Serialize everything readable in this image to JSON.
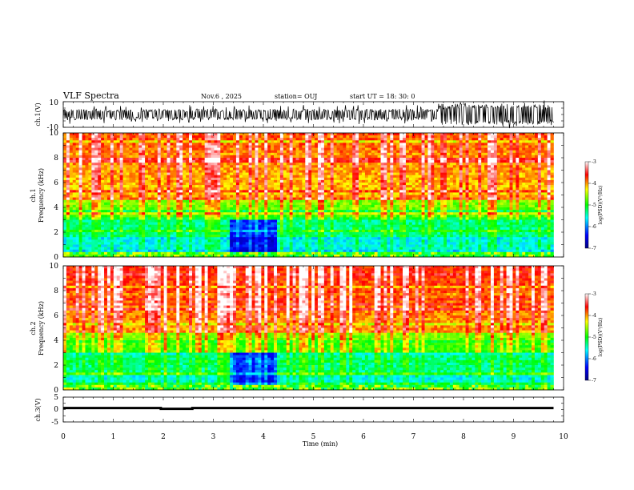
{
  "header": {
    "title": "VLF Spectra",
    "date": "Nov.6 , 2025",
    "station": "station= OUJ",
    "start": "start UT = 18: 30: 0"
  },
  "chart_data": [
    {
      "type": "line",
      "name": "ch1-waveform",
      "ylabel": "ch.1(V)",
      "ylim": [
        -10,
        10
      ],
      "yticks": [
        "10",
        "-10"
      ],
      "xlim": [
        0,
        10
      ]
    },
    {
      "type": "heatmap",
      "name": "ch1-spectrogram",
      "ylabel_line1": "ch.1",
      "ylabel_line2": "Frequency (kHz)",
      "ylim": [
        0,
        10
      ],
      "yticks": [
        "0",
        "2",
        "4",
        "6",
        "8",
        "10"
      ],
      "xlim": [
        0,
        10
      ],
      "data_end_min": 9.8,
      "quiet_interval_min": [
        3.3,
        4.3
      ],
      "colorbar": {
        "label": "log(PSD)(V²/Hz)",
        "range": [
          -7,
          -3
        ],
        "ticks": [
          "-3",
          "-4",
          "-5",
          "-6",
          "-7"
        ],
        "colormap": [
          "#000080",
          "#0000ff",
          "#00ffff",
          "#00ff00",
          "#ffff00",
          "#ff0000",
          "#ffffff"
        ]
      }
    },
    {
      "type": "heatmap",
      "name": "ch2-spectrogram",
      "ylabel_line1": "ch.2",
      "ylabel_line2": "Frequency (kHz)",
      "ylim": [
        0,
        10
      ],
      "yticks": [
        "0",
        "2",
        "4",
        "6",
        "8",
        "10"
      ],
      "xlim": [
        0,
        10
      ],
      "data_end_min": 9.8,
      "quiet_interval_min": [
        3.3,
        4.3
      ],
      "colorbar": {
        "label": "log(PSD)(V²/Hz)",
        "range": [
          -7,
          -3
        ],
        "ticks": [
          "-3",
          "-4",
          "-5",
          "-6",
          "-7"
        ],
        "colormap": [
          "#000080",
          "#0000ff",
          "#00ffff",
          "#00ff00",
          "#ffff00",
          "#ff0000",
          "#ffffff"
        ]
      }
    },
    {
      "type": "line",
      "name": "ch3-level",
      "ylabel": "ch.3(V)",
      "ylim": [
        -5,
        5
      ],
      "yticks": [
        "5",
        "0",
        "-5"
      ],
      "x": [
        0,
        1.95,
        1.95,
        2.58,
        2.58,
        9.8
      ],
      "y": [
        0.6,
        0.6,
        0.3,
        0.3,
        0.6,
        0.6
      ],
      "xlim": [
        0,
        10
      ],
      "xticks": [
        "0",
        "1",
        "2",
        "3",
        "4",
        "5",
        "6",
        "7",
        "8",
        "9",
        "10"
      ],
      "xlabel": "Time (min)"
    }
  ]
}
